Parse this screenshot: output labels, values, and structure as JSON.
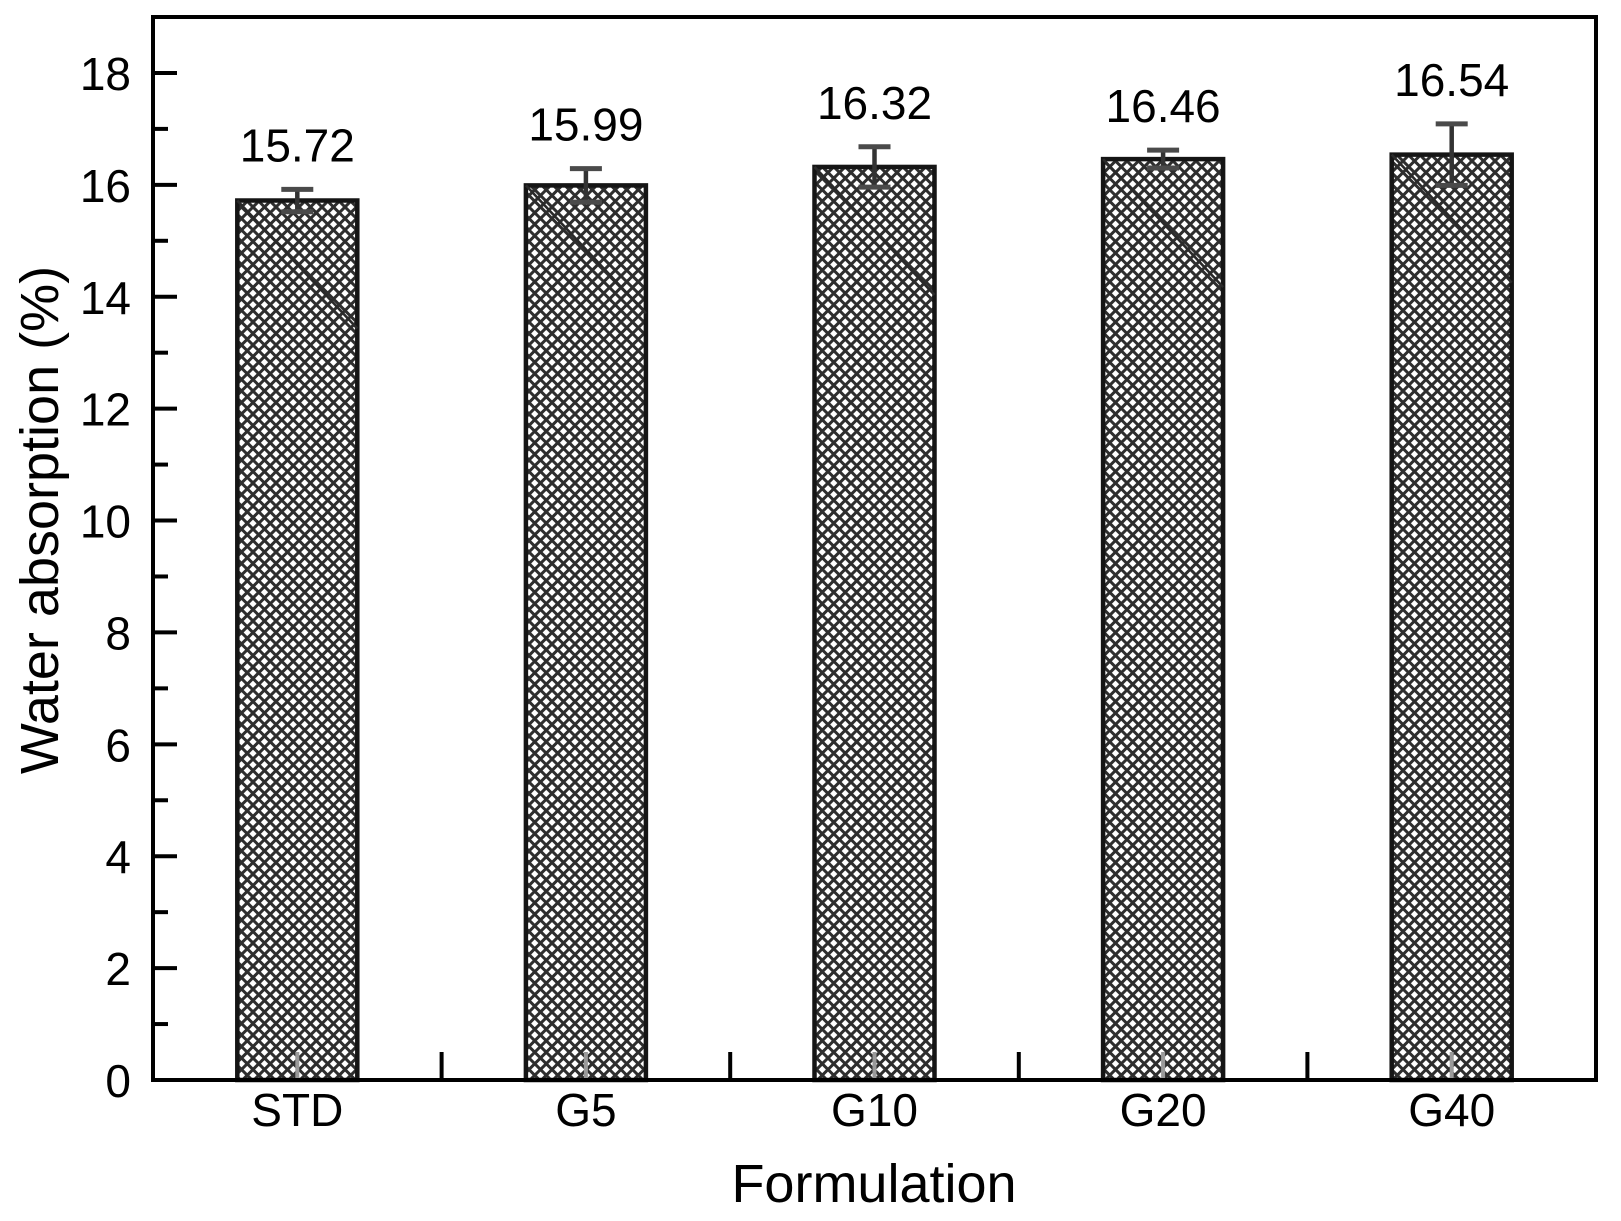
{
  "chart_data": {
    "type": "bar",
    "title": "",
    "xlabel": "Formulation",
    "ylabel": "Water absorption (%)",
    "categories": [
      "STD",
      "G5",
      "G10",
      "G20",
      "G40"
    ],
    "values": [
      15.72,
      15.99,
      16.32,
      16.46,
      16.54
    ],
    "errors": [
      0.2,
      0.3,
      0.36,
      0.16,
      0.55
    ],
    "value_labels": [
      "15.72",
      "15.99",
      "16.32",
      "16.46",
      "16.54"
    ],
    "ylim": [
      0,
      19
    ],
    "yticks_major": [
      0,
      2,
      4,
      6,
      8,
      10,
      12,
      14,
      16,
      18
    ],
    "yticks_minor": [
      1,
      3,
      5,
      7,
      9,
      11,
      13,
      15,
      17
    ],
    "grid": false,
    "legend_position": "none",
    "bar_hatch": "dense-crosshatch",
    "style": {
      "background": "#ffffff",
      "axis_color": "#000000",
      "bar_edge_color": "#151515",
      "hatch_color": "#2e2e2e",
      "bar_fill": "#ffffff",
      "diagonal_artifact_color": "#2a2a2a",
      "error_line_color": "#333333",
      "error_cap_color": "#4a4a4a",
      "faint_center_tick_color": "#9a9a9a",
      "text_color": "#000000"
    }
  }
}
